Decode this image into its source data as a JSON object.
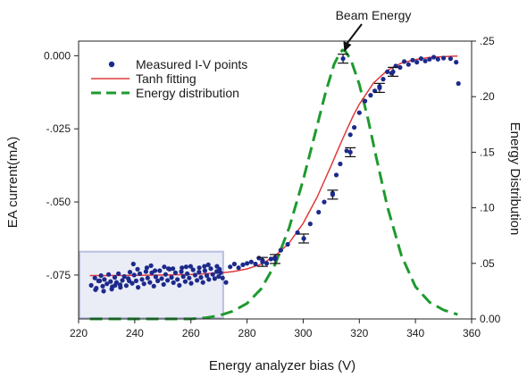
{
  "chart_data": {
    "type": "scatter",
    "title": "",
    "xlabel": "Energy analyzer bias (V)",
    "ylabel": "EA current(mA)",
    "y2label": "Energy Distribution",
    "xlim": [
      220,
      360
    ],
    "ylim": [
      -0.09,
      0.005
    ],
    "y2lim": [
      0.0,
      0.25
    ],
    "xticks": [
      220,
      240,
      260,
      280,
      300,
      320,
      340,
      360
    ],
    "xtick_labels": [
      "220",
      "240",
      "260",
      "280",
      "300",
      "320",
      "340",
      "360"
    ],
    "yticks": [
      0.0,
      -0.025,
      -0.05,
      -0.075
    ],
    "ytick_labels": [
      "0.000",
      "-.025",
      "-.050",
      "-.075"
    ],
    "y2ticks": [
      0.0,
      0.05,
      0.1,
      0.15,
      0.2,
      0.25
    ],
    "y2tick_labels": [
      "0.00",
      ".05",
      ".10",
      ".15",
      ".20",
      ".25"
    ],
    "grid": false,
    "legend_position": "top-left",
    "annotation": {
      "text": "Beam Energy",
      "x": 314
    },
    "highlight_region": {
      "x": [
        220,
        271.5
      ],
      "y": [
        -0.09,
        -0.067
      ]
    },
    "series": [
      {
        "name": "Measured I-V points",
        "type": "scatter",
        "color": "#1c2a8c",
        "x": [
          224.5,
          225.8,
          226.3,
          227.1,
          228.0,
          228.6,
          229.2,
          230.1,
          230.7,
          231.4,
          232.0,
          232.9,
          233.5,
          234.2,
          234.8,
          235.6,
          236.3,
          237.0,
          237.7,
          238.3,
          239.1,
          239.8,
          240.5,
          241.2,
          241.8,
          242.6,
          243.3,
          244.0,
          244.6,
          245.4,
          246.1,
          246.8,
          247.5,
          248.2,
          248.9,
          249.6,
          250.3,
          251.0,
          251.7,
          252.4,
          253.1,
          253.8,
          254.5,
          255.2,
          255.9,
          256.6,
          257.3,
          258.0,
          258.7,
          259.4,
          260.1,
          260.8,
          261.5,
          262.2,
          262.9,
          263.6,
          264.3,
          265.0,
          265.7,
          266.4,
          267.1,
          267.8,
          268.5,
          269.2,
          269.9,
          270.6,
          271.3,
          226.0,
          228.9,
          231.8,
          234.9,
          238.0,
          241.0,
          244.3,
          247.2,
          250.5,
          253.6,
          256.8,
          259.9,
          263.0,
          266.2,
          269.3,
          227.5,
          233.0,
          239.5,
          245.8,
          252.0,
          258.3,
          264.8,
          270.2,
          272.5,
          274.0,
          275.5,
          277.0,
          278.5,
          280.0,
          281.5,
          283.0,
          284.2,
          285.5,
          287.0,
          288.5,
          290.0,
          292.0,
          294.5,
          298.0,
          300.2,
          302.5,
          305.5,
          307.5,
          310.5,
          311.8,
          313.2,
          315.5,
          316.8,
          318.2,
          320.0,
          322.0,
          324.0,
          325.5,
          327.2,
          328.5,
          330.0,
          331.5,
          333.0,
          334.5,
          336.0,
          337.5,
          339.0,
          340.5,
          342.0,
          343.5,
          345.0,
          346.5,
          348.0,
          350.0,
          352.5,
          354.5,
          355.3
        ],
        "y": [
          -0.0785,
          -0.076,
          -0.0795,
          -0.077,
          -0.0752,
          -0.0788,
          -0.0765,
          -0.078,
          -0.0748,
          -0.0772,
          -0.079,
          -0.0758,
          -0.0775,
          -0.0745,
          -0.0783,
          -0.0768,
          -0.0755,
          -0.0786,
          -0.0762,
          -0.074,
          -0.0778,
          -0.075,
          -0.077,
          -0.0792,
          -0.0745,
          -0.0765,
          -0.078,
          -0.0738,
          -0.076,
          -0.0775,
          -0.0742,
          -0.0788,
          -0.0756,
          -0.077,
          -0.0735,
          -0.0762,
          -0.0782,
          -0.0748,
          -0.0768,
          -0.073,
          -0.0758,
          -0.0776,
          -0.0742,
          -0.0765,
          -0.0785,
          -0.0738,
          -0.0755,
          -0.0772,
          -0.0745,
          -0.076,
          -0.0778,
          -0.0732,
          -0.075,
          -0.0768,
          -0.074,
          -0.0758,
          -0.0775,
          -0.0735,
          -0.0752,
          -0.0765,
          -0.0728,
          -0.0748,
          -0.0762,
          -0.0738,
          -0.0755,
          -0.0742,
          -0.076,
          -0.08,
          -0.0805,
          -0.0798,
          -0.0792,
          -0.077,
          -0.073,
          -0.0725,
          -0.0735,
          -0.0722,
          -0.0728,
          -0.0725,
          -0.072,
          -0.0725,
          -0.0715,
          -0.072,
          -0.077,
          -0.0785,
          -0.0712,
          -0.0718,
          -0.0728,
          -0.0722,
          -0.072,
          -0.073,
          -0.0775,
          -0.0722,
          -0.0712,
          -0.0725,
          -0.0715,
          -0.071,
          -0.0705,
          -0.0712,
          -0.0692,
          -0.07,
          -0.071,
          -0.0695,
          -0.069,
          -0.0665,
          -0.0645,
          -0.0605,
          -0.0625,
          -0.0575,
          -0.0535,
          -0.05,
          -0.047,
          -0.0408,
          -0.037,
          -0.0325,
          -0.027,
          -0.0245,
          -0.0195,
          -0.0155,
          -0.0135,
          -0.012,
          -0.0105,
          -0.008,
          -0.0055,
          -0.006,
          -0.0035,
          -0.004,
          -0.002,
          -0.003,
          -0.0015,
          -0.0022,
          -0.001,
          -0.0018,
          -0.0012,
          -0.0005,
          -0.0012,
          -0.0008,
          -0.001,
          -0.0022,
          -0.0095
        ]
      },
      {
        "name": "Tanh fitting",
        "type": "line",
        "color": "#e03a3a",
        "style": "solid",
        "x": [
          224,
          230,
          240,
          250,
          260,
          270,
          275,
          280,
          285,
          290,
          295,
          300,
          305,
          310,
          312,
          314,
          316,
          318,
          320,
          325,
          330,
          335,
          340,
          345,
          350,
          355
        ],
        "y": [
          -0.0752,
          -0.0752,
          -0.0751,
          -0.075,
          -0.0748,
          -0.0743,
          -0.0738,
          -0.0729,
          -0.0713,
          -0.0685,
          -0.064,
          -0.0573,
          -0.0483,
          -0.0375,
          -0.033,
          -0.0286,
          -0.0243,
          -0.0202,
          -0.0166,
          -0.0094,
          -0.005,
          -0.0025,
          -0.0013,
          -0.0006,
          -0.0003,
          -0.0001
        ]
      },
      {
        "name": "Energy distribution",
        "type": "line",
        "color": "#1e9a2e",
        "style": "dashed",
        "axis": "y2",
        "x": [
          224,
          250,
          260,
          265,
          270,
          275,
          280,
          285,
          290,
          295,
          300,
          305,
          308,
          311,
          313,
          314,
          315,
          317,
          320,
          323,
          326,
          330,
          335,
          340,
          345,
          350,
          355
        ],
        "y": [
          0.0,
          0.0,
          0.0,
          0.001,
          0.003,
          0.007,
          0.014,
          0.027,
          0.049,
          0.082,
          0.125,
          0.174,
          0.204,
          0.229,
          0.239,
          0.242,
          0.241,
          0.233,
          0.211,
          0.181,
          0.146,
          0.101,
          0.057,
          0.029,
          0.015,
          0.008,
          0.004
        ]
      },
      {
        "name": "error_bars",
        "type": "errorbar",
        "x": [
          285.5,
          290.0,
          300.2,
          310.5,
          316.8,
          327.2,
          332.0,
          314.2
        ],
        "y": [
          -0.0705,
          -0.0695,
          -0.0625,
          -0.0475,
          -0.033,
          -0.011,
          -0.0055,
          -0.001
        ]
      }
    ]
  }
}
